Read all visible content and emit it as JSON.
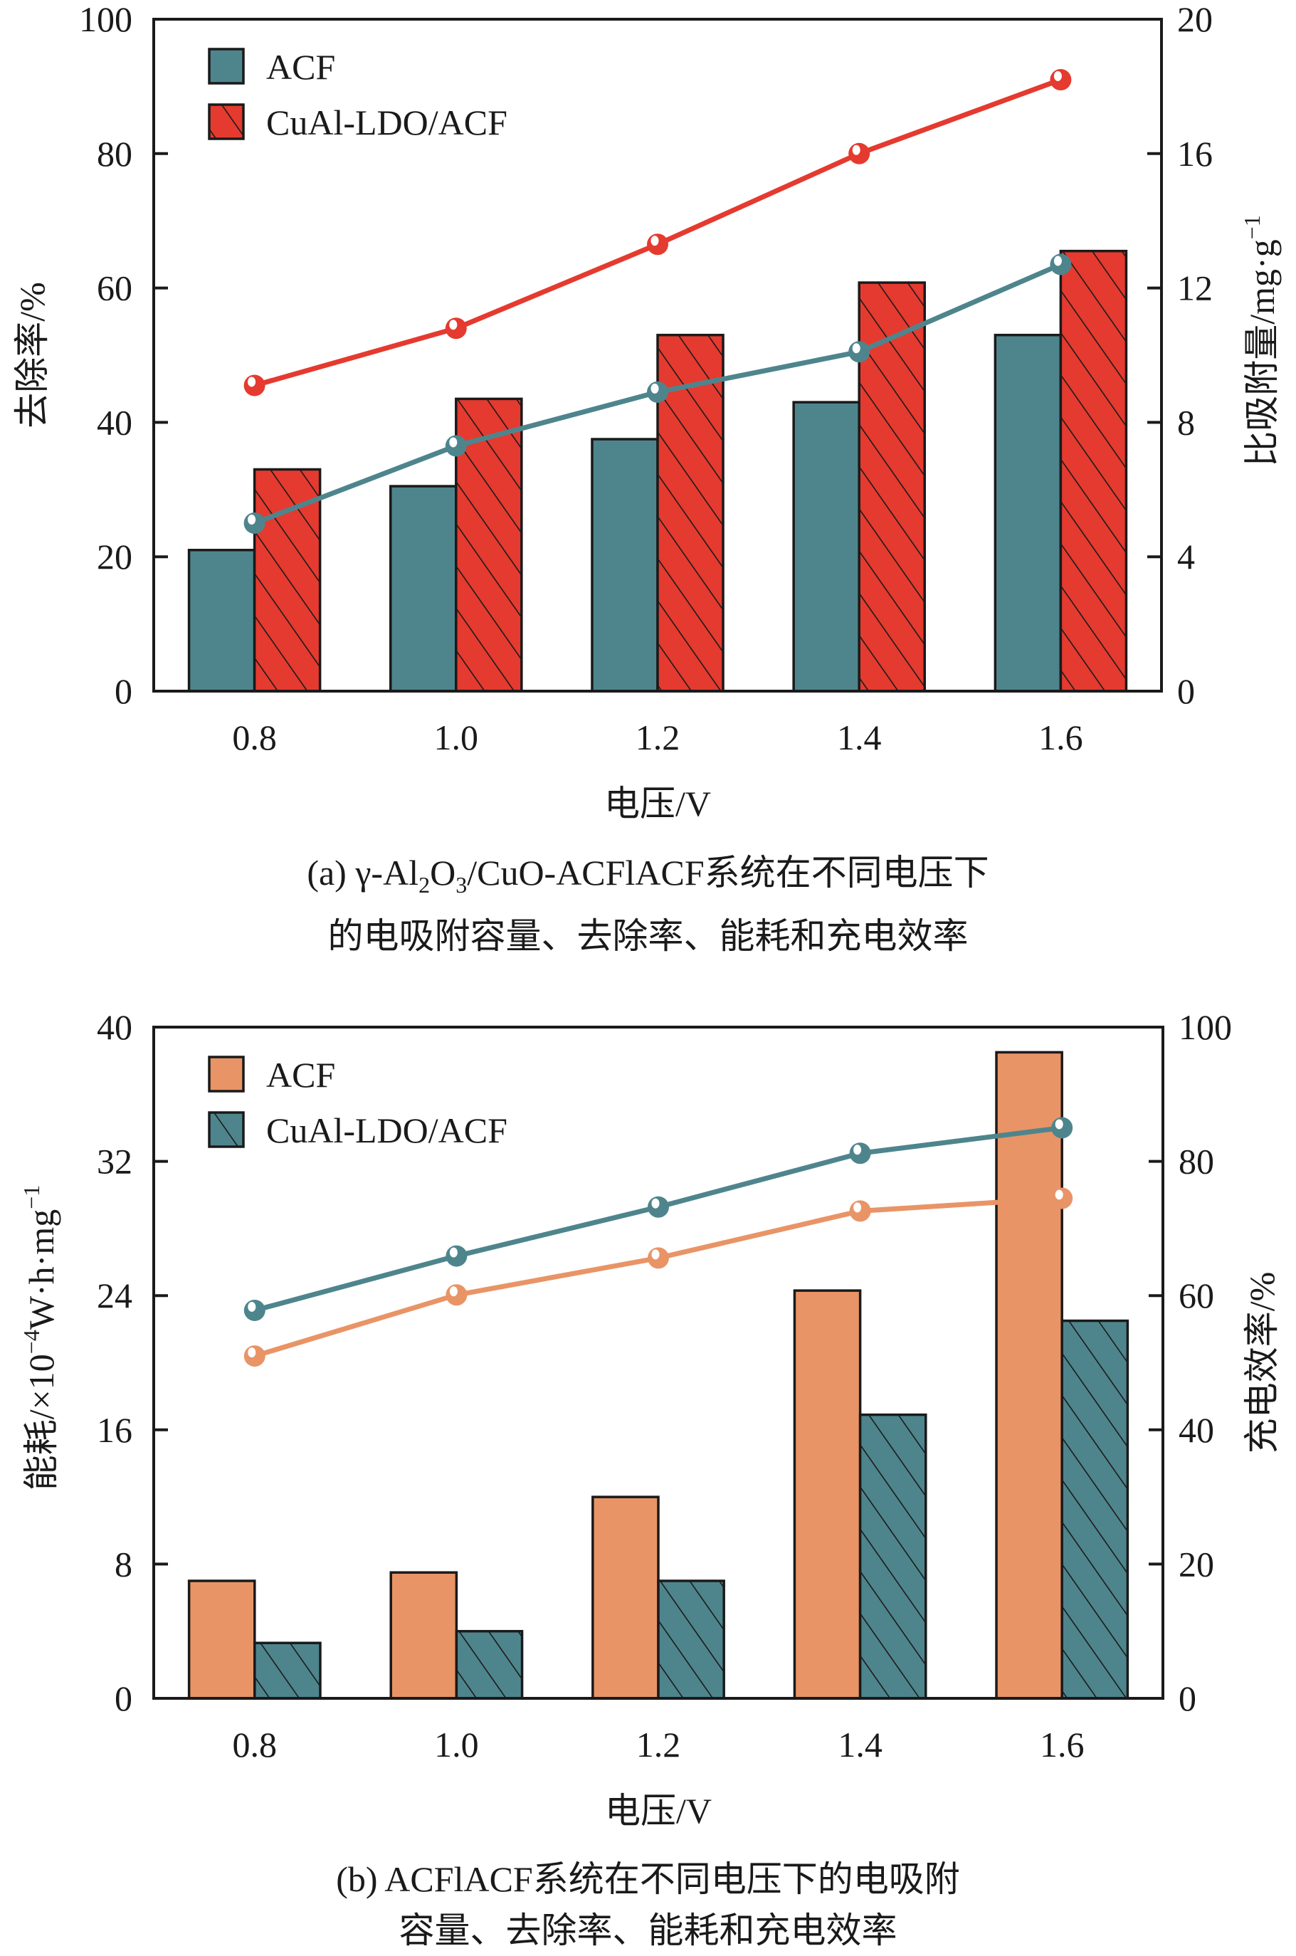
{
  "chart_data": [
    {
      "id": "a",
      "type": "bar",
      "subtype": "grouped-bar-with-lines-dual-axis",
      "caption_line1_prefix": "(a) γ-Al",
      "caption_line1_sub1": "2",
      "caption_line1_mid": "O",
      "caption_line1_sub2": "3",
      "caption_line1_suffix": "/CuO-ACFlACF系统在不同电压下",
      "caption_line2": "的电吸附容量、去除率、能耗和充电效率",
      "xlabel": "电压/V",
      "ylabel_left": "去除率/%",
      "ylabel_right_main": "比吸附量/mg·g",
      "ylabel_right_sup": "−1",
      "categories": [
        "0.8",
        "1.0",
        "1.2",
        "1.4",
        "1.6"
      ],
      "ylim_left": [
        0,
        100
      ],
      "yticks_left": [
        0,
        20,
        40,
        60,
        80,
        100
      ],
      "ylim_right": [
        0,
        20
      ],
      "yticks_right": [
        0,
        4,
        8,
        12,
        16,
        20
      ],
      "grid": false,
      "legend_position": "top-left",
      "bar_series": [
        {
          "name": "ACF",
          "color": "#4e858d",
          "hatch": false,
          "axis": "left",
          "values": [
            21.0,
            30.5,
            37.5,
            43.0,
            53.0
          ]
        },
        {
          "name": "CuAl-LDO/ACF",
          "color": "#e53a2f",
          "hatch": true,
          "axis": "left",
          "values": [
            33.0,
            43.5,
            53.0,
            60.8,
            65.5
          ]
        }
      ],
      "line_series": [
        {
          "name": "ACF",
          "color": "#4e858d",
          "axis": "right",
          "values": [
            5.0,
            7.3,
            8.9,
            10.1,
            12.7
          ]
        },
        {
          "name": "CuAl-LDO/ACF",
          "color": "#e53a2f",
          "axis": "right",
          "values": [
            9.1,
            10.8,
            13.3,
            16.0,
            18.2
          ]
        }
      ]
    },
    {
      "id": "b",
      "type": "bar",
      "subtype": "grouped-bar-with-lines-dual-axis",
      "caption_line1": "(b) ACFlACF系统在不同电压下的电吸附",
      "caption_line2": "容量、去除率、能耗和充电效率",
      "xlabel": "电压/V",
      "ylabel_left_main": "能耗/×10",
      "ylabel_left_sup1": "−4",
      "ylabel_left_mid": "W·h·mg",
      "ylabel_left_sup2": "−1",
      "ylabel_right": "充电效率/%",
      "categories": [
        "0.8",
        "1.0",
        "1.2",
        "1.4",
        "1.6"
      ],
      "ylim_left": [
        0,
        40
      ],
      "yticks_left": [
        0,
        8,
        16,
        24,
        32,
        40
      ],
      "ylim_right": [
        0,
        100
      ],
      "yticks_right": [
        0,
        20,
        40,
        60,
        80,
        100
      ],
      "grid": false,
      "legend_position": "top-left",
      "bar_series": [
        {
          "name": "ACF",
          "color": "#e99466",
          "hatch": false,
          "axis": "left",
          "values": [
            7.0,
            7.5,
            12.0,
            24.3,
            38.5
          ]
        },
        {
          "name": "CuAl-LDO/ACF",
          "color": "#4e858d",
          "hatch": true,
          "axis": "left",
          "values": [
            3.3,
            4.0,
            7.0,
            16.9,
            22.5
          ]
        }
      ],
      "line_series": [
        {
          "name": "ACF",
          "color": "#e99466",
          "axis": "right",
          "values": [
            51.0,
            60.1,
            65.6,
            72.6,
            74.5
          ]
        },
        {
          "name": "CuAl-LDO/ACF",
          "color": "#4e858d",
          "axis": "right",
          "values": [
            57.8,
            65.9,
            73.2,
            81.2,
            85.0
          ]
        }
      ]
    }
  ]
}
